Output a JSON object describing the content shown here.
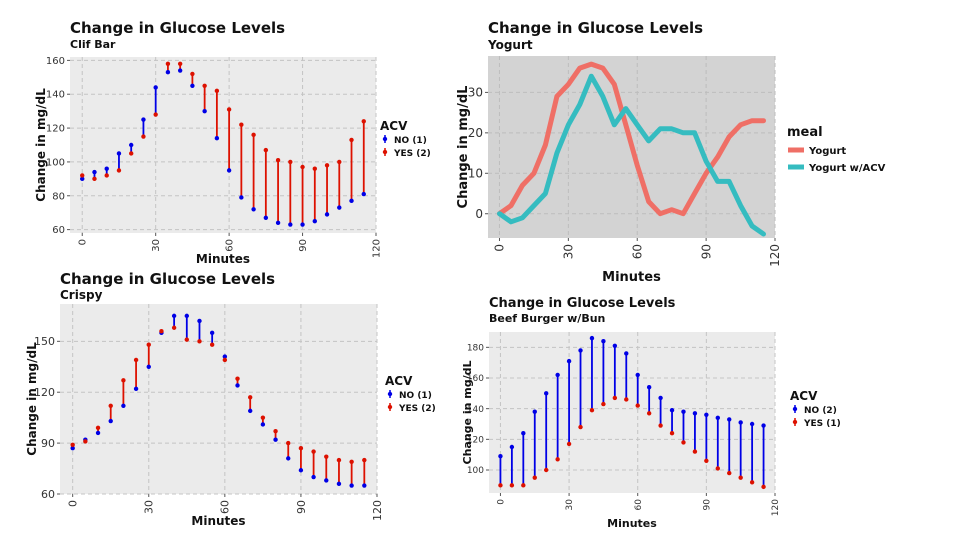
{
  "colors": {
    "no": "#0000e6",
    "yes": "#dd1100",
    "yogurt": "#ef6f66",
    "yogurt_acv": "#35bcc0",
    "panel_grey": "#ebebeb",
    "panel_dark": "#d3d3d3"
  },
  "chart_data": [
    {
      "id": "clif",
      "type": "scatter",
      "title": "Change in Glucose Levels",
      "subtitle": "Clif Bar",
      "xlabel": "Minutes",
      "ylabel": "Change in mg/dL",
      "xlim": [
        -5,
        120
      ],
      "ylim": [
        58,
        162
      ],
      "xticks": [
        0,
        30,
        60,
        90,
        120
      ],
      "yticks": [
        60,
        80,
        100,
        120,
        140,
        160
      ],
      "grid": true,
      "legend": {
        "title": "ACV",
        "position": "right",
        "entries": [
          "NO (1)",
          "YES (2)"
        ]
      },
      "x": [
        0,
        5,
        10,
        15,
        20,
        25,
        30,
        35,
        40,
        45,
        50,
        55,
        60,
        65,
        70,
        75,
        80,
        85,
        90,
        95,
        100,
        105,
        110,
        115
      ],
      "series": [
        {
          "name": "NO (1)",
          "color": "#0000e6",
          "values": [
            90,
            94,
            96,
            105,
            110,
            125,
            144,
            153,
            154,
            145,
            130,
            114,
            95,
            79,
            72,
            67,
            64,
            63,
            63,
            65,
            69,
            73,
            77,
            81
          ]
        },
        {
          "name": "YES (2)",
          "color": "#dd1100",
          "values": [
            92,
            90,
            92,
            95,
            105,
            115,
            128,
            158,
            158,
            152,
            145,
            142,
            131,
            122,
            116,
            107,
            101,
            100,
            97,
            96,
            98,
            100,
            113,
            124
          ]
        }
      ]
    },
    {
      "id": "yogurt",
      "type": "line",
      "title": "Change in Glucose Levels",
      "subtitle": "Yogurt",
      "xlabel": "Minutes",
      "ylabel": "Change in mg/dL",
      "xlim": [
        -5,
        120
      ],
      "ylim": [
        -6,
        39
      ],
      "xticks": [
        0,
        30,
        60,
        90,
        120
      ],
      "yticks": [
        0,
        10,
        20,
        30
      ],
      "grid": true,
      "legend": {
        "title": "meal",
        "position": "right",
        "entries": [
          "Yogurt",
          "Yogurt w/ACV"
        ]
      },
      "x": [
        0,
        5,
        10,
        15,
        20,
        25,
        30,
        35,
        40,
        45,
        50,
        55,
        60,
        65,
        70,
        75,
        80,
        85,
        90,
        95,
        100,
        105,
        110,
        115
      ],
      "series": [
        {
          "name": "Yogurt",
          "color": "#ef6f66",
          "values": [
            0,
            2,
            7,
            10,
            17,
            29,
            32,
            36,
            37,
            36,
            32,
            22,
            12,
            3,
            0,
            1,
            0,
            5,
            10,
            14,
            19,
            22,
            23,
            23
          ]
        },
        {
          "name": "Yogurt w/ACV",
          "color": "#35bcc0",
          "values": [
            0,
            -2,
            -1,
            2,
            5,
            15,
            22,
            27,
            34,
            29,
            22,
            26,
            22,
            18,
            21,
            21,
            20,
            20,
            13,
            8,
            8,
            2,
            -3,
            -5
          ]
        }
      ]
    },
    {
      "id": "crispy",
      "type": "scatter",
      "title": "Change in Glucose Levels",
      "subtitle": "Crispy",
      "xlabel": "Minutes",
      "ylabel": "Change in mg/dL",
      "xlim": [
        -5,
        120
      ],
      "ylim": [
        60,
        172
      ],
      "xticks": [
        0,
        30,
        60,
        90,
        120
      ],
      "yticks": [
        60,
        90,
        120,
        150
      ],
      "grid": true,
      "legend": {
        "title": "ACV",
        "position": "right",
        "entries": [
          "NO (1)",
          "YES (2)"
        ]
      },
      "x": [
        0,
        5,
        10,
        15,
        20,
        25,
        30,
        35,
        40,
        45,
        50,
        55,
        60,
        65,
        70,
        75,
        80,
        85,
        90,
        95,
        100,
        105,
        110,
        115
      ],
      "series": [
        {
          "name": "NO (1)",
          "color": "#0000e6",
          "values": [
            87,
            92,
            96,
            103,
            112,
            122,
            135,
            155,
            165,
            165,
            162,
            155,
            141,
            124,
            109,
            101,
            92,
            81,
            74,
            70,
            68,
            66,
            65,
            65
          ]
        },
        {
          "name": "YES (2)",
          "color": "#dd1100",
          "values": [
            89,
            91,
            99,
            112,
            127,
            139,
            148,
            156,
            158,
            151,
            150,
            148,
            139,
            128,
            117,
            105,
            97,
            90,
            87,
            85,
            82,
            80,
            79,
            80
          ]
        }
      ]
    },
    {
      "id": "burger",
      "type": "scatter",
      "title": "Change in Glucose Levels",
      "subtitle": "Beef Burger w/Bun",
      "xlabel": "Minutes",
      "ylabel": "Change in mg/dL",
      "xlim": [
        -5,
        120
      ],
      "ylim": [
        85,
        190
      ],
      "xticks": [
        0,
        30,
        60,
        90,
        120
      ],
      "yticks": [
        100,
        120,
        140,
        160,
        180
      ],
      "grid": true,
      "legend": {
        "title": "ACV",
        "position": "right",
        "entries": [
          "NO (2)",
          "YES (1)"
        ]
      },
      "x": [
        0,
        5,
        10,
        15,
        20,
        25,
        30,
        35,
        40,
        45,
        50,
        55,
        60,
        65,
        70,
        75,
        80,
        85,
        90,
        95,
        100,
        105,
        110,
        115
      ],
      "series": [
        {
          "name": "NO (2)",
          "color": "#0000e6",
          "values": [
            109,
            115,
            124,
            138,
            150,
            162,
            171,
            178,
            186,
            184,
            181,
            176,
            162,
            154,
            147,
            139,
            138,
            137,
            136,
            134,
            133,
            131,
            130,
            129
          ]
        },
        {
          "name": "YES (1)",
          "color": "#dd1100",
          "values": [
            90,
            90,
            90,
            95,
            100,
            107,
            117,
            128,
            139,
            143,
            147,
            146,
            142,
            137,
            129,
            124,
            118,
            112,
            106,
            101,
            98,
            95,
            92,
            89
          ]
        }
      ]
    }
  ]
}
